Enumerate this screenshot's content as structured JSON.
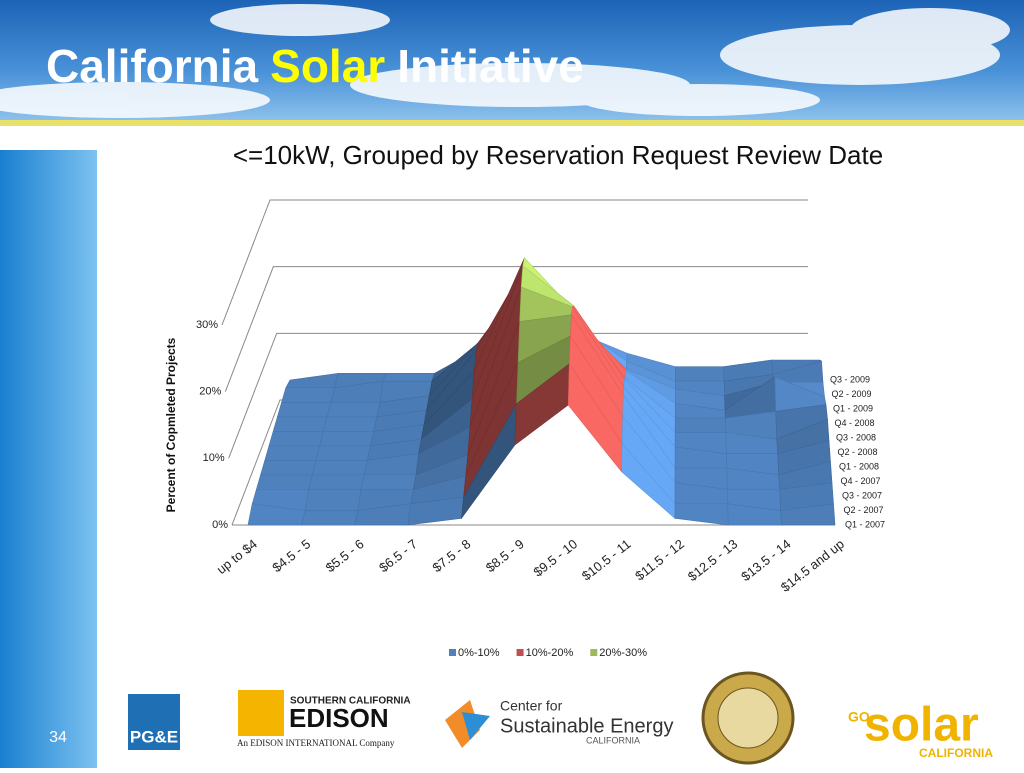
{
  "slide": {
    "title_parts": [
      "California",
      "Solar",
      "Initiative"
    ],
    "page_number": "34"
  },
  "chart_data": {
    "type": "surface",
    "title": "<=10kW, Grouped by Reservation Request Review Date",
    "y_label": "Percent of Copmleted Projects",
    "categories": [
      "up to $4",
      "$4.5 - 5",
      "$5.5 - 6",
      "$6.5 - 7",
      "$7.5 - 8",
      "$8.5 - 9",
      "$9.5 - 10",
      "$10.5 - 11",
      "$11.5 - 12",
      "$12.5 - 13",
      "$13.5 - 14",
      "$14.5 and up"
    ],
    "ylim": [
      0,
      30
    ],
    "yticks": [
      {
        "value": 0,
        "label": "0%"
      },
      {
        "value": 10,
        "label": "10%"
      },
      {
        "value": 20,
        "label": "20%"
      },
      {
        "value": 30,
        "label": "30%"
      }
    ],
    "bands": [
      {
        "name": "0%-10%",
        "color": "#4f81bd",
        "range": [
          0,
          10
        ]
      },
      {
        "name": "10%-20%",
        "color": "#c0504d",
        "range": [
          10,
          20
        ]
      },
      {
        "name": "20%-30%",
        "color": "#9bbb59",
        "range": [
          20,
          30
        ]
      }
    ],
    "series": [
      {
        "name": "Q1 - 2007",
        "values": [
          0,
          0,
          0,
          0,
          1,
          12,
          18,
          8,
          1,
          0,
          0,
          0
        ]
      },
      {
        "name": "Q2 - 2007",
        "values": [
          1,
          0,
          0,
          1,
          2,
          16,
          22,
          10,
          1,
          1,
          0,
          1
        ]
      },
      {
        "name": "Q3 - 2007",
        "values": [
          1,
          1,
          1,
          1,
          3,
          20,
          24,
          12,
          2,
          1,
          1,
          2
        ]
      },
      {
        "name": "Q4 - 2007",
        "values": [
          1,
          1,
          1,
          1,
          4,
          24,
          25,
          13,
          2,
          2,
          1,
          3
        ]
      },
      {
        "name": "Q1 - 2008",
        "values": [
          1,
          1,
          1,
          2,
          6,
          27,
          24,
          12,
          3,
          2,
          2,
          4
        ]
      },
      {
        "name": "Q2 - 2008",
        "values": [
          1,
          1,
          1,
          2,
          8,
          28,
          22,
          11,
          3,
          3,
          2,
          5
        ]
      },
      {
        "name": "Q3 - 2008",
        "values": [
          1,
          1,
          1,
          2,
          10,
          27,
          19,
          9,
          3,
          3,
          4,
          5
        ]
      },
      {
        "name": "Q4 - 2008",
        "values": [
          1,
          1,
          1,
          2,
          11,
          24,
          16,
          8,
          3,
          2,
          7,
          4
        ]
      },
      {
        "name": "Q1 - 2009",
        "values": [
          1,
          1,
          1,
          2,
          10,
          20,
          13,
          6,
          3,
          2,
          4,
          4
        ]
      },
      {
        "name": "Q2 - 2009",
        "values": [
          1,
          1,
          2,
          2,
          8,
          15,
          10,
          5,
          2,
          2,
          3,
          5
        ]
      },
      {
        "name": "Q3 - 2009",
        "values": [
          0,
          1,
          1,
          1,
          5,
          9,
          7,
          4,
          2,
          2,
          3,
          3
        ]
      }
    ]
  },
  "logos": {
    "sce_top": "SOUTHERN CALIFORNIA",
    "sce_name": "EDISON",
    "sce_sub": "An EDISON INTERNATIONAL Company",
    "cse_top": "Center for",
    "cse_name": "Sustainable Energy",
    "cse_sub": "CALIFORNIA",
    "pge": "PG&E",
    "go": "GO",
    "solar": "solar",
    "solar_sub": "CALIFORNIA"
  }
}
